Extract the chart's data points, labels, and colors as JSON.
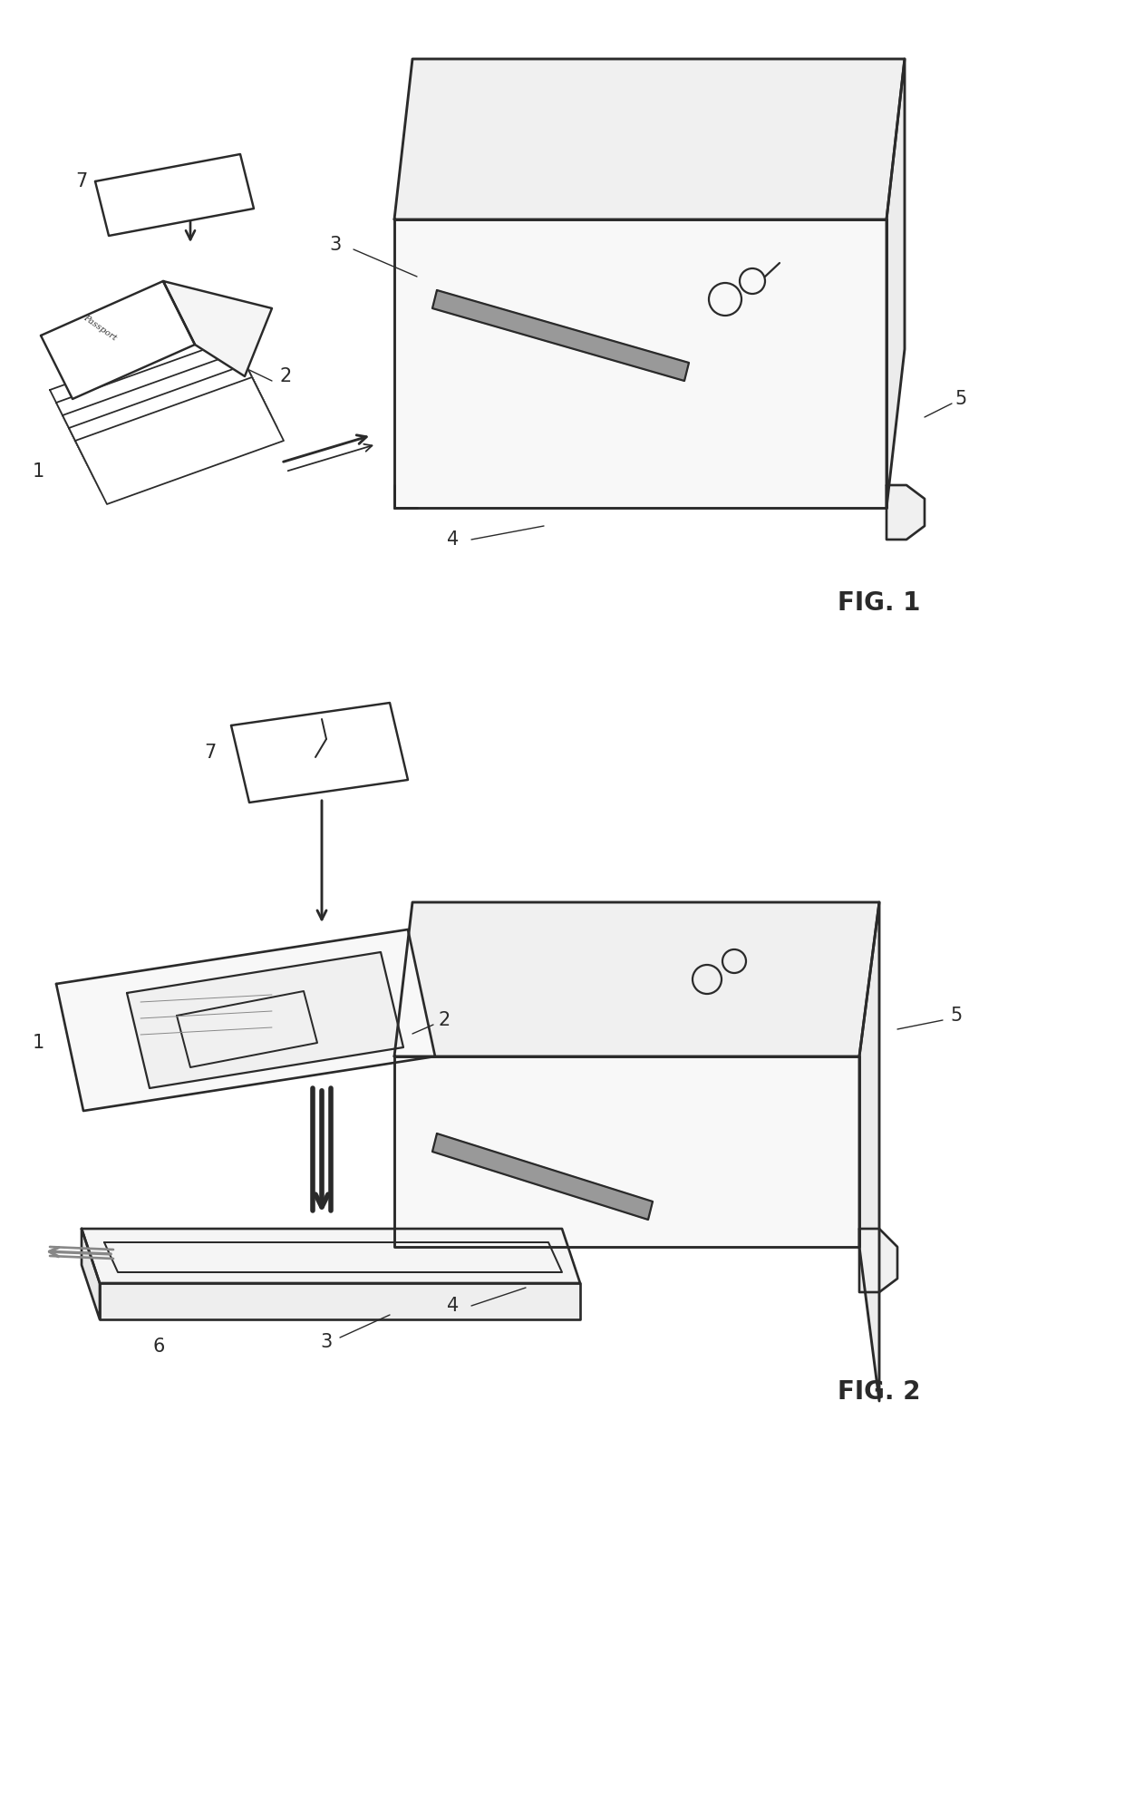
{
  "bg_color": "#ffffff",
  "line_color": "#2a2a2a",
  "line_width": 1.6,
  "fig1_label": "FIG. 1",
  "fig2_label": "FIG. 2",
  "label_fontsize": 20,
  "ref_fontsize": 15,
  "slot_color": "#888888",
  "slot_dark": "#555555"
}
